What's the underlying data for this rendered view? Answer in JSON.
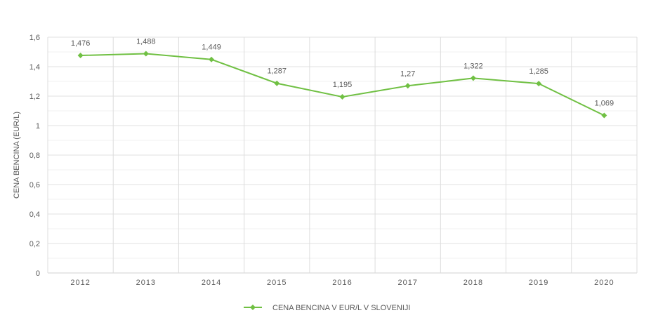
{
  "chart_data": {
    "type": "line",
    "title": "",
    "xlabel": "",
    "ylabel": "CENA BENCINA (EUR/L)",
    "categories": [
      "2012",
      "2013",
      "2014",
      "2015",
      "2016",
      "2017",
      "2018",
      "2019",
      "2020"
    ],
    "series": [
      {
        "name": "CENA BENCINA V EUR/L V SLOVENIJI",
        "values": [
          1.476,
          1.488,
          1.449,
          1.287,
          1.195,
          1.27,
          1.322,
          1.285,
          1.069
        ],
        "data_labels": [
          "1,476",
          "1,488",
          "1,449",
          "1,287",
          "1,195",
          "1,27",
          "1,322",
          "1,285",
          "1,069"
        ],
        "color": "#70c043",
        "marker": "diamond"
      }
    ],
    "ylim": [
      0,
      1.6
    ],
    "yticks": [
      0,
      0.2,
      0.4,
      0.6,
      0.8,
      1,
      1.2,
      1.4,
      1.6
    ],
    "ytick_labels": [
      "0",
      "0,2",
      "0,4",
      "0,6",
      "0,8",
      "1",
      "1,2",
      "1,4",
      "1,6"
    ],
    "grid": true,
    "legend_position": "bottom"
  }
}
